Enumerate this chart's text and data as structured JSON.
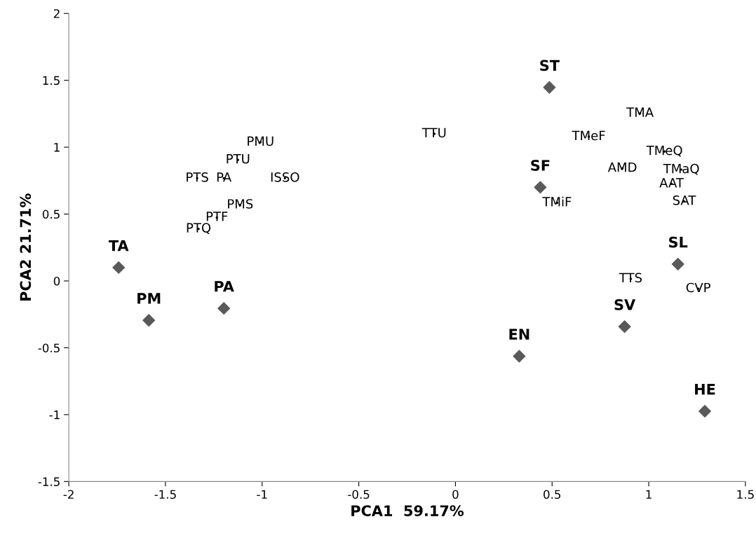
{
  "chart_data": {
    "type": "scatter",
    "xlabel": "PCA1  59.17%",
    "ylabel": "PCA2 21.71%",
    "xlim": [
      -2,
      1.5
    ],
    "ylim": [
      -1.5,
      2
    ],
    "xticks": [
      -2,
      -1.5,
      -1,
      -0.5,
      0,
      0.5,
      1,
      1.5
    ],
    "yticks": [
      -1.5,
      -1,
      -0.5,
      0,
      0.5,
      1,
      1.5,
      2
    ],
    "grid": false,
    "legend": false,
    "marker": "diamond",
    "series": [
      {
        "name": "TA",
        "color": "#595959",
        "x": [
          -1.742
        ],
        "values": [
          0.1
        ]
      },
      {
        "name": "PM",
        "color": "#595959",
        "x": [
          -1.586
        ],
        "values": [
          -0.295
        ]
      },
      {
        "name": "PA",
        "color": "#595959",
        "x": [
          -1.198
        ],
        "values": [
          -0.205
        ]
      },
      {
        "name": "EN",
        "color": "#595959",
        "x": [
          0.33
        ],
        "values": [
          -0.563
        ]
      },
      {
        "name": "ST",
        "color": "#595959",
        "x": [
          0.486
        ],
        "values": [
          1.447
        ]
      },
      {
        "name": "SF",
        "color": "#595959",
        "x": [
          0.439
        ],
        "values": [
          0.7
        ]
      },
      {
        "name": "SL",
        "color": "#595959",
        "x": [
          1.151
        ],
        "values": [
          0.126
        ]
      },
      {
        "name": "SV",
        "color": "#595959",
        "x": [
          0.875
        ],
        "values": [
          -0.342
        ]
      },
      {
        "name": "HE",
        "color": "#595959",
        "x": [
          1.29
        ],
        "values": [
          -0.974
        ]
      },
      {
        "color": "#000000",
        "marker": "none",
        "x": [
          -1.009,
          -1.125,
          -1.336,
          -1.198,
          -0.882,
          -1.114,
          -1.234,
          -1.329,
          -0.109,
          0.955,
          0.69,
          1.082,
          0.864,
          1.169,
          1.118,
          1.183,
          0.526,
          0.907,
          1.256
        ],
        "values": [
          1.037,
          0.905,
          0.768,
          0.768,
          0.768,
          0.568,
          0.474,
          0.389,
          1.1,
          1.253,
          1.079,
          0.968,
          0.842,
          0.832,
          0.726,
          0.595,
          0.584,
          0.016,
          -0.058
        ],
        "value_labels": [
          "PMU",
          "PTU",
          "PTS",
          "PA",
          "ISSO",
          "PMS",
          "PTF",
          "PTQ",
          "TTU",
          "TMA",
          "TMeF",
          "TMeQ",
          "AMD",
          "TMaQ",
          "AAT",
          "SAT",
          "TMiF",
          "TTS",
          "CVP"
        ]
      }
    ]
  }
}
